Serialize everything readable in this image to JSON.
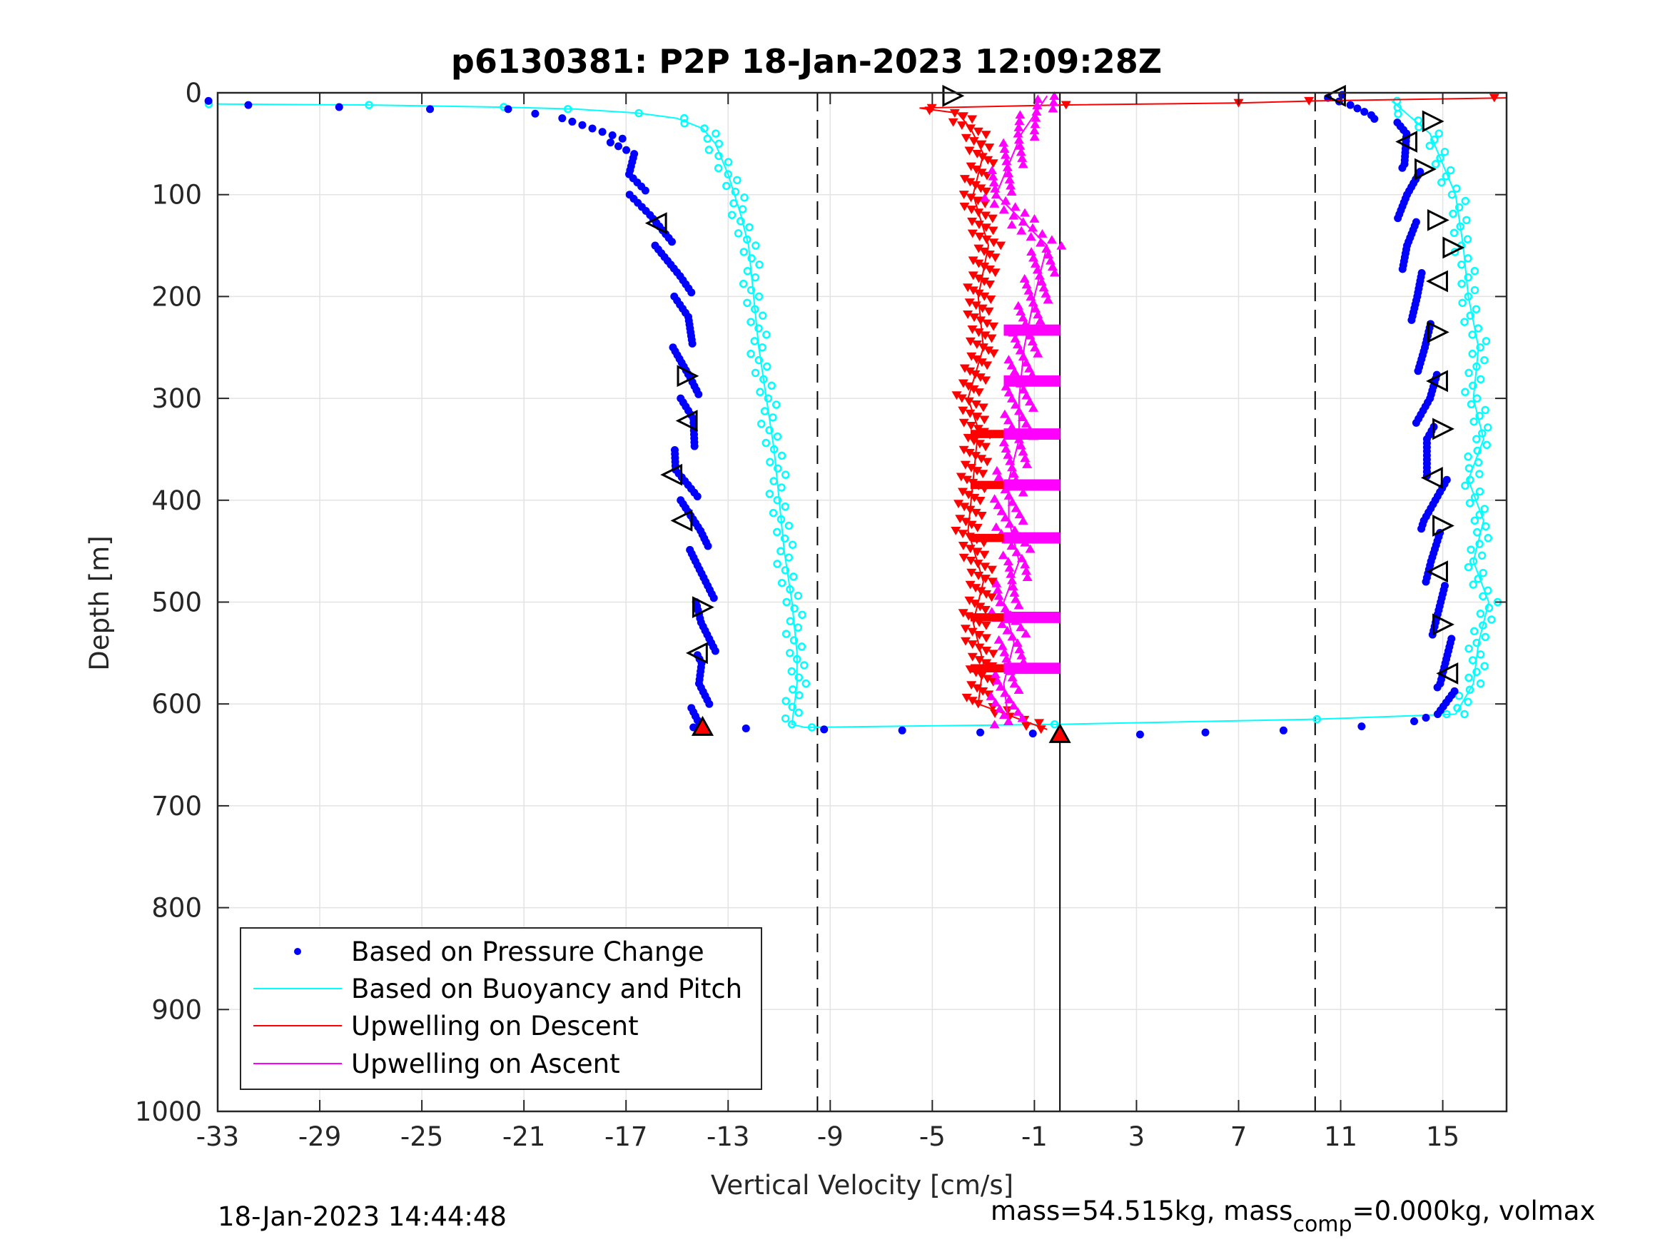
{
  "chart_data": {
    "type": "scatter",
    "title": "p6130381: P2P 18-Jan-2023 12:09:28Z",
    "xlabel": "Vertical Velocity [cm/s]",
    "ylabel": "Depth [m]",
    "xlim": [
      -33,
      17.5
    ],
    "ylim": [
      1000,
      0
    ],
    "y_reversed": true,
    "grid": true,
    "x_ticks": [
      -33,
      -29,
      -25,
      -21,
      -17,
      -13,
      -9,
      -5,
      -1,
      3,
      7,
      11,
      15
    ],
    "x_tick_labels": [
      "-33",
      "-29",
      "-25",
      "-21",
      "-17",
      "-13",
      "-9",
      "-5",
      "-1",
      "3",
      "7",
      "11",
      "15"
    ],
    "y_ticks": [
      0,
      100,
      200,
      300,
      400,
      500,
      600,
      700,
      800,
      900,
      1000
    ],
    "y_tick_labels": [
      "0",
      "100",
      "200",
      "300",
      "400",
      "500",
      "600",
      "700",
      "800",
      "900",
      "1000"
    ],
    "reference_lines": {
      "dashed": [
        -9.5,
        10
      ],
      "solid": [
        0
      ]
    },
    "legend": {
      "placement": "bottom-left",
      "entries": [
        {
          "label": "Based on Pressure Change",
          "color": "#0000ff",
          "marker": "dot"
        },
        {
          "label": "Based on Buoyancy and Pitch",
          "color": "#00ffff",
          "marker": "line"
        },
        {
          "label": "Upwelling on Descent",
          "color": "#ff0000",
          "marker": "line"
        },
        {
          "label": "Upwelling on Ascent",
          "color": "#ff00ff",
          "marker": "line"
        }
      ]
    },
    "series": [
      {
        "name": "Based on Pressure Change",
        "color": "#0000ff",
        "segments": [
          {
            "x": [
              -33,
              -31.5,
              -28,
              -24.5,
              -21.5,
              -19.5,
              -18.5,
              -17.5,
              -16.5,
              -17,
              -16.5,
              -16,
              -15.5,
              -15,
              -14.5,
              -14.8,
              -14.6,
              -14.5,
              -14.3,
              -15,
              -14.5,
              -14.2,
              -14.1,
              -13.9,
              -14,
              -13.8,
              -14.2,
              -14.1,
              -14
            ],
            "y": [
              8,
              12,
              14,
              16,
              16,
              25,
              35,
              45,
              60,
              80,
              100,
              120,
              150,
              180,
              220,
              250,
              280,
              300,
              320,
              370,
              400,
              430,
              460,
              500,
              520,
              560,
              580,
              600,
              620
            ]
          },
          {
            "x": [
              -14,
              -12,
              -9,
              -6,
              -3,
              -1,
              0
            ],
            "y": [
              623,
              624,
              625,
              626,
              628,
              629,
              630
            ]
          },
          {
            "x": [
              3.5,
              6,
              9,
              12,
              14,
              14.8,
              15.2,
              15,
              14.8,
              14.6,
              14.5,
              14.8,
              14.2,
              14.5,
              14.3,
              14,
              13.6,
              13.6,
              13.8,
              13.4,
              12.5,
              11.5,
              10.5,
              11
            ],
            "y": [
              630,
              628,
              626,
              622,
              617,
              610,
              580,
              540,
              500,
              460,
              420,
              380,
              340,
              300,
              250,
              200,
              150,
              100,
              70,
              40,
              22,
              12,
              5,
              2
            ]
          }
        ]
      },
      {
        "name": "Based on Buoyancy and Pitch",
        "color": "#00ffff",
        "segments": [
          {
            "x": [
              -33,
              -27,
              -22,
              -19,
              -16.5,
              -15,
              -14,
              -13.5,
              -13,
              -12.5,
              -12.2,
              -12,
              -11.8,
              -11.5,
              -11.2,
              -11,
              -10.8,
              -10.5,
              -10.3,
              -10.3,
              -10.5,
              -10,
              0,
              10,
              15.5
            ],
            "y": [
              11,
              12,
              14,
              16,
              20,
              25,
              35,
              50,
              80,
              120,
              150,
              200,
              250,
              300,
              350,
              400,
              450,
              500,
              550,
              580,
              620,
              623,
              620,
              615,
              610
            ]
          },
          {
            "x": [
              15.5,
              16.2,
              16.4,
              16.8,
              16.2,
              16.6,
              16.0,
              16.6,
              16.2,
              16.4,
              16.0,
              15.8,
              15.5,
              14.5,
              13
            ],
            "y": [
              610,
              580,
              540,
              500,
              460,
              420,
              380,
              340,
              300,
              250,
              200,
              150,
              100,
              40,
              8
            ]
          }
        ]
      },
      {
        "name": "Upwelling on Descent",
        "color": "#ff0000",
        "segments": [
          {
            "x": [
              17.5,
              10,
              7,
              0,
              -5.5,
              -4.0,
              -3.5,
              -3.0,
              -3.4,
              -2.8,
              -3.2,
              -3.0,
              -3.6,
              -3.2,
              -3.4,
              -3.6,
              -3.0,
              -3.4,
              -3.0,
              -3.2,
              -0.5
            ],
            "y": [
              5,
              8,
              10,
              12,
              15,
              20,
              35,
              60,
              100,
              150,
              200,
              250,
              300,
              330,
              380,
              430,
              480,
              520,
              560,
              600,
              625
            ]
          }
        ]
      },
      {
        "name": "Upwelling on Ascent",
        "color": "#ff00ff",
        "segments": [
          {
            "x": [
              -2.0,
              -2.2,
              -1.8,
              -2.2,
              -1.6,
              -2.0,
              -2.0,
              -1.6,
              -1.6,
              -1.4,
              -1.0,
              -0.5,
              -2.5,
              -1.5,
              -0.5
            ],
            "y": [
              620,
              580,
              540,
              500,
              460,
              420,
              380,
              340,
              300,
              250,
              200,
              150,
              100,
              40,
              3
            ]
          }
        ]
      }
    ],
    "thrust_markers": [
      {
        "x": -4.2,
        "y": 3,
        "dir": "right"
      },
      {
        "x": 10.8,
        "y": 3,
        "dir": "left"
      },
      {
        "x": 14.6,
        "y": 28,
        "dir": "right"
      },
      {
        "x": 13.6,
        "y": 48,
        "dir": "left"
      },
      {
        "x": 14.3,
        "y": 75,
        "dir": "right"
      },
      {
        "x": -15.8,
        "y": 128,
        "dir": "left"
      },
      {
        "x": 14.8,
        "y": 125,
        "dir": "right"
      },
      {
        "x": 15.4,
        "y": 152,
        "dir": "right"
      },
      {
        "x": 14.8,
        "y": 185,
        "dir": "left"
      },
      {
        "x": 14.8,
        "y": 235,
        "dir": "right"
      },
      {
        "x": -14.6,
        "y": 278,
        "dir": "right"
      },
      {
        "x": 14.8,
        "y": 283,
        "dir": "left"
      },
      {
        "x": -14.6,
        "y": 322,
        "dir": "left"
      },
      {
        "x": 15.0,
        "y": 330,
        "dir": "right"
      },
      {
        "x": -15.2,
        "y": 375,
        "dir": "left"
      },
      {
        "x": 14.6,
        "y": 378,
        "dir": "left"
      },
      {
        "x": -14.8,
        "y": 420,
        "dir": "left"
      },
      {
        "x": 15.0,
        "y": 425,
        "dir": "right"
      },
      {
        "x": 14.8,
        "y": 470,
        "dir": "left"
      },
      {
        "x": -14.0,
        "y": 505,
        "dir": "right"
      },
      {
        "x": 15.0,
        "y": 522,
        "dir": "right"
      },
      {
        "x": -14.2,
        "y": 550,
        "dir": "left"
      },
      {
        "x": 15.2,
        "y": 570,
        "dir": "left"
      },
      {
        "x": -14.0,
        "y": 623,
        "dir": "up"
      },
      {
        "x": 0.0,
        "y": 630,
        "dir": "up"
      }
    ]
  },
  "footer": {
    "timestamp": "18-Jan-2023 14:44:48",
    "mass_text": "mass=54.515kg, mass",
    "mass_sub": "comp",
    "mass_rest": "=0.000kg, volmax"
  }
}
